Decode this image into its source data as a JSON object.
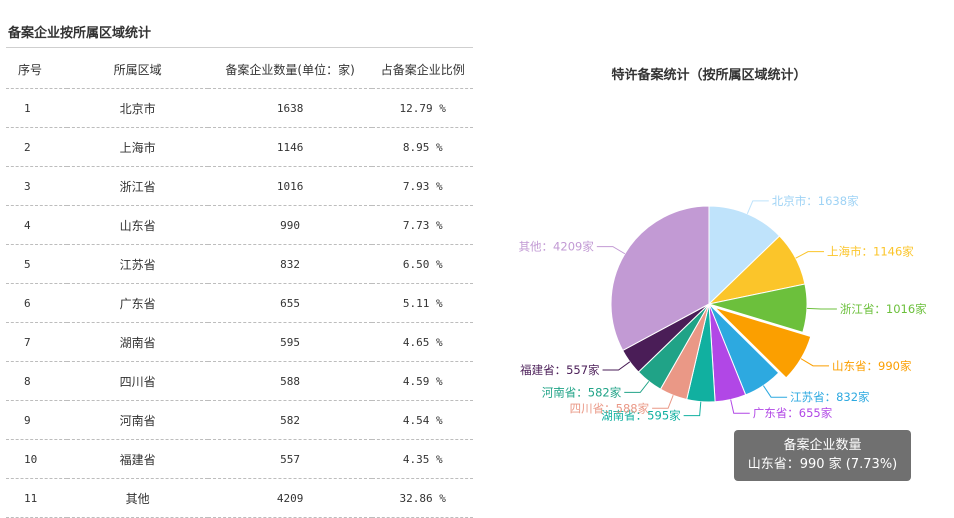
{
  "table": {
    "title": "备案企业按所属区域统计",
    "headers": [
      "序号",
      "所属区域",
      "备案企业数量(单位：家)",
      "占备案企业比例"
    ],
    "rows": [
      {
        "idx": "1",
        "region": "北京市",
        "count": "1638",
        "ratio": "12.79 %"
      },
      {
        "idx": "2",
        "region": "上海市",
        "count": "1146",
        "ratio": "8.95 %"
      },
      {
        "idx": "3",
        "region": "浙江省",
        "count": "1016",
        "ratio": "7.93 %"
      },
      {
        "idx": "4",
        "region": "山东省",
        "count": "990",
        "ratio": "7.73 %"
      },
      {
        "idx": "5",
        "region": "江苏省",
        "count": "832",
        "ratio": "6.50 %"
      },
      {
        "idx": "6",
        "region": "广东省",
        "count": "655",
        "ratio": "5.11 %"
      },
      {
        "idx": "7",
        "region": "湖南省",
        "count": "595",
        "ratio": "4.65 %"
      },
      {
        "idx": "8",
        "region": "四川省",
        "count": "588",
        "ratio": "4.59 %"
      },
      {
        "idx": "9",
        "region": "河南省",
        "count": "582",
        "ratio": "4.54 %"
      },
      {
        "idx": "10",
        "region": "福建省",
        "count": "557",
        "ratio": "4.35 %"
      },
      {
        "idx": "11",
        "region": "其他",
        "count": "4209",
        "ratio": "32.86 %"
      }
    ]
  },
  "chart_data": {
    "type": "pie",
    "title": "特许备案统计（按所属区域统计）",
    "unit": "家",
    "highlighted": "山东省",
    "slices": [
      {
        "name": "北京市",
        "value": 1638,
        "color": "#bfe3fb"
      },
      {
        "name": "上海市",
        "value": 1146,
        "color": "#fbc52a"
      },
      {
        "name": "浙江省",
        "value": 1016,
        "color": "#6cc03c"
      },
      {
        "name": "山东省",
        "value": 990,
        "color": "#fb9f00"
      },
      {
        "name": "江苏省",
        "value": 832,
        "color": "#2da9e0"
      },
      {
        "name": "广东省",
        "value": 655,
        "color": "#b147e6"
      },
      {
        "name": "湖南省",
        "value": 595,
        "color": "#11b0a0"
      },
      {
        "name": "四川省",
        "value": 588,
        "color": "#ea9886"
      },
      {
        "name": "河南省",
        "value": 582,
        "color": "#20a387"
      },
      {
        "name": "福建省",
        "value": 557,
        "color": "#4a1d57"
      },
      {
        "name": "其他",
        "value": 4209,
        "color": "#c29ad4"
      }
    ]
  },
  "tooltip": {
    "title": "备案企业数量",
    "text": "山东省：990 家 (7.73%)"
  }
}
